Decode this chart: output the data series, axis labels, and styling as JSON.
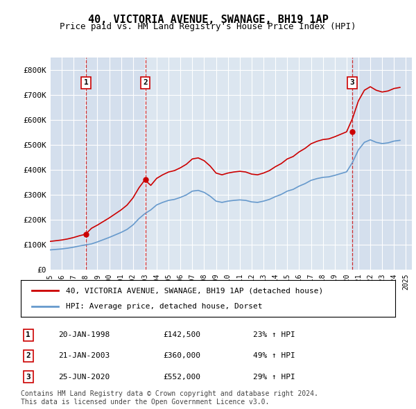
{
  "title": "40, VICTORIA AVENUE, SWANAGE, BH19 1AP",
  "subtitle": "Price paid vs. HM Land Registry's House Price Index (HPI)",
  "ylabel": "",
  "ylim": [
    0,
    850000
  ],
  "yticks": [
    0,
    100000,
    200000,
    300000,
    400000,
    500000,
    600000,
    700000,
    800000
  ],
  "ytick_labels": [
    "£0",
    "£100K",
    "£200K",
    "£300K",
    "£400K",
    "£500K",
    "£600K",
    "£700K",
    "£800K"
  ],
  "background_color": "#ffffff",
  "plot_bg_color": "#dce6f0",
  "grid_color": "#ffffff",
  "title_fontsize": 11,
  "subtitle_fontsize": 10,
  "sale_color": "#cc0000",
  "hpi_color": "#6699cc",
  "purchases": [
    {
      "date": 1998.05,
      "price": 142500,
      "label": "1",
      "pct": "23%"
    },
    {
      "date": 2003.05,
      "price": 360000,
      "label": "2",
      "pct": "49%"
    },
    {
      "date": 2020.48,
      "price": 552000,
      "label": "3",
      "pct": "29%"
    }
  ],
  "legend_label_red": "40, VICTORIA AVENUE, SWANAGE, BH19 1AP (detached house)",
  "legend_label_blue": "HPI: Average price, detached house, Dorset",
  "table_rows": [
    {
      "num": "1",
      "date": "20-JAN-1998",
      "price": "£142,500",
      "pct": "23% ↑ HPI"
    },
    {
      "num": "2",
      "date": "21-JAN-2003",
      "price": "£360,000",
      "pct": "49% ↑ HPI"
    },
    {
      "num": "3",
      "date": "25-JUN-2020",
      "price": "£552,000",
      "pct": "29% ↑ HPI"
    }
  ],
  "footer": "Contains HM Land Registry data © Crown copyright and database right 2024.\nThis data is licensed under the Open Government Licence v3.0.",
  "xmin": 1995.0,
  "xmax": 2025.5
}
